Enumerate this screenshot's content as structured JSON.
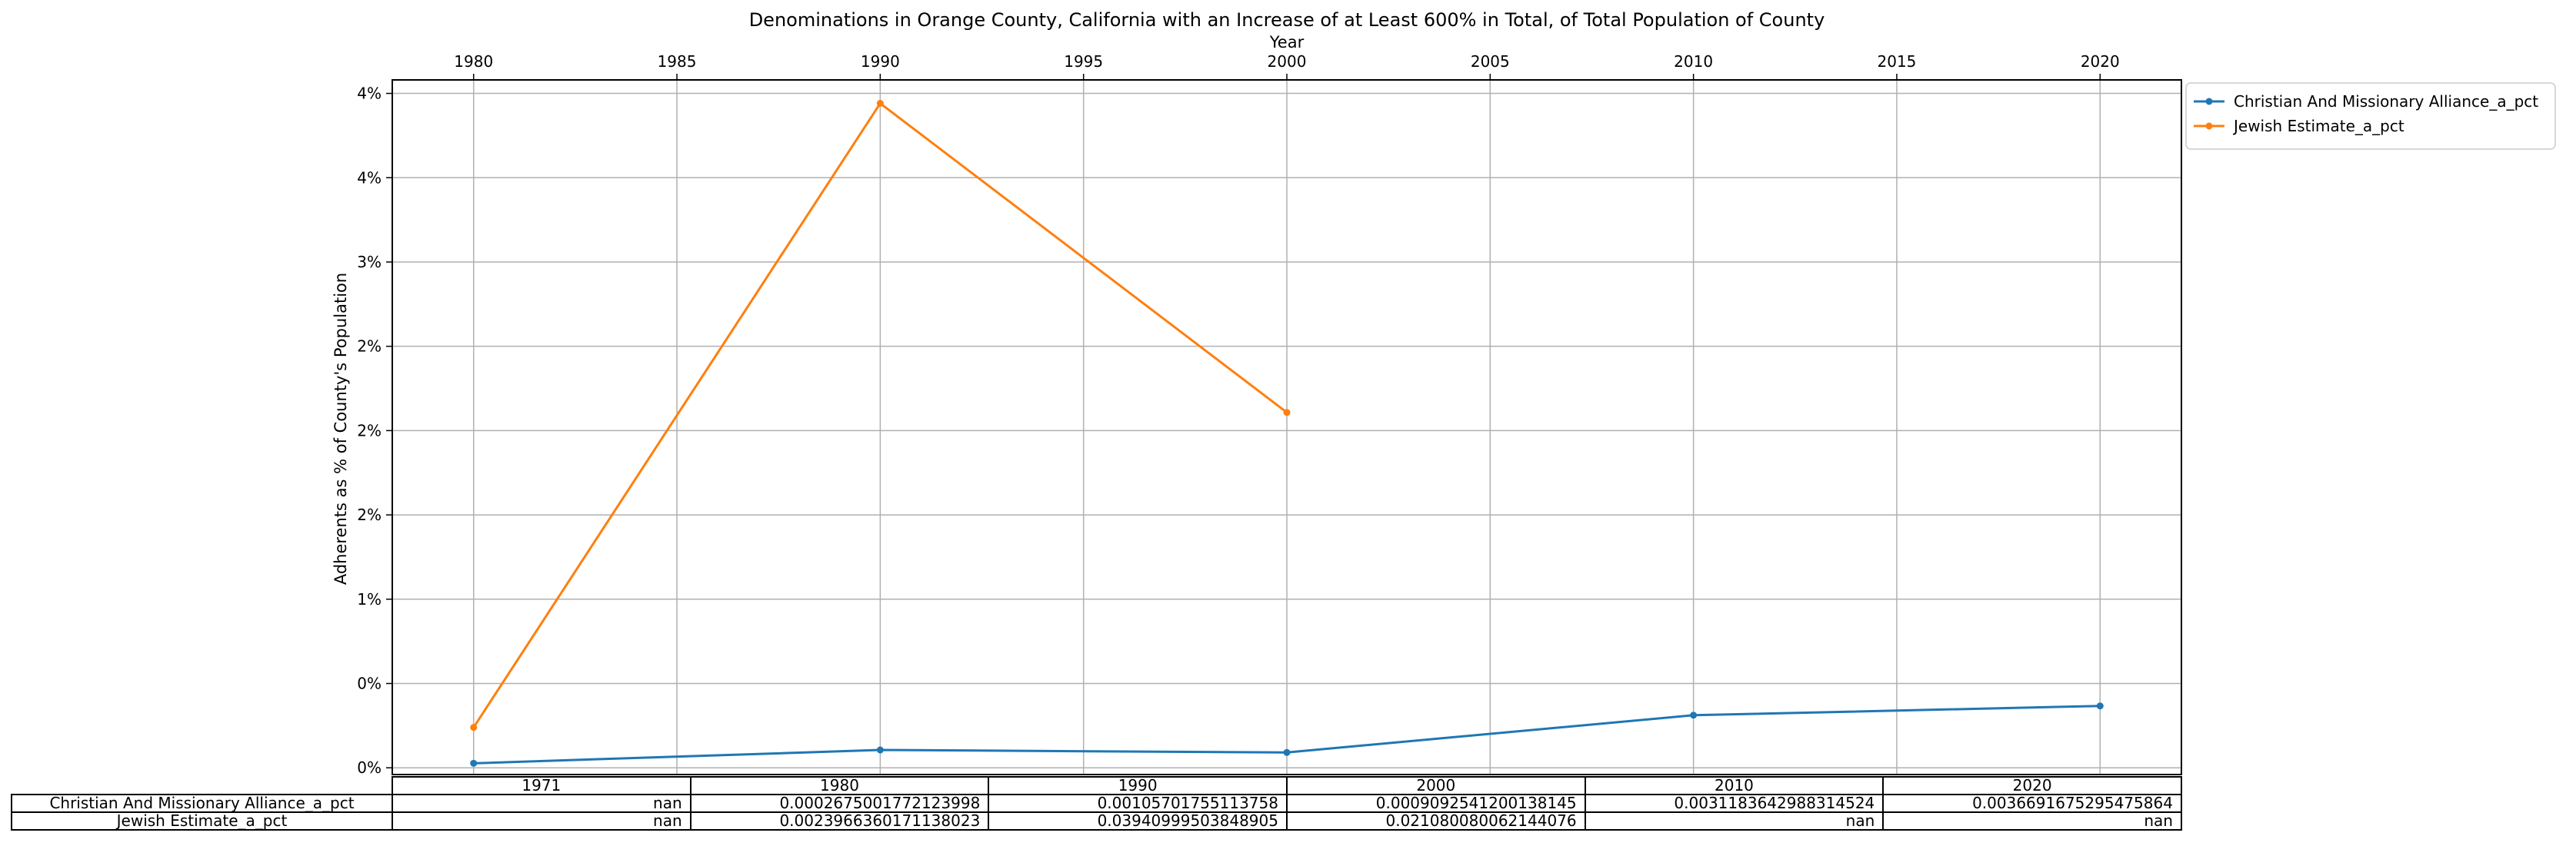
{
  "chart_data": {
    "type": "line",
    "title": "Denominations in Orange County, California with an Increase of at Least 600% in Total, of Total Population of County",
    "xlabel": "Year",
    "ylabel": "Adherents as % of County's Population",
    "x_ticks": [
      1980,
      1985,
      1990,
      1995,
      2000,
      2005,
      2010,
      2015,
      2020
    ],
    "xlim": [
      1978,
      2022
    ],
    "y_ticks": [
      {
        "value": 0.0,
        "label": "0%"
      },
      {
        "value": 0.005,
        "label": "0%"
      },
      {
        "value": 0.01,
        "label": "1%"
      },
      {
        "value": 0.015,
        "label": "2%"
      },
      {
        "value": 0.02,
        "label": "2%"
      },
      {
        "value": 0.025,
        "label": "2%"
      },
      {
        "value": 0.03,
        "label": "3%"
      },
      {
        "value": 0.035,
        "label": "4%"
      },
      {
        "value": 0.04,
        "label": "4%"
      }
    ],
    "ylim": [
      -0.0004,
      0.0408
    ],
    "grid": true,
    "legend_position": "outside-top-right",
    "series": [
      {
        "name": "Christian And Missionary Alliance_a_pct",
        "color": "#1f77b4",
        "x": [
          1980,
          1990,
          2000,
          2010,
          2020
        ],
        "values": [
          0.0002675001772123998,
          0.00105701755113758,
          0.0009092541200138145,
          0.0031183642988314524,
          0.0036691675295475864
        ]
      },
      {
        "name": "Jewish Estimate_a_pct",
        "color": "#ff7f0e",
        "x": [
          1980,
          1990,
          2000
        ],
        "values": [
          0.0023966360171138023,
          0.03940999503848905,
          0.021080080062144076
        ]
      }
    ],
    "table": {
      "columns": [
        "1971",
        "1980",
        "1990",
        "2000",
        "2010",
        "2020"
      ],
      "rows": [
        {
          "label": "Christian And Missionary Alliance_a_pct",
          "cells": [
            "nan",
            "0.0002675001772123998",
            "0.00105701755113758",
            "0.0009092541200138145",
            "0.0031183642988314524",
            "0.0036691675295475864"
          ]
        },
        {
          "label": "Jewish Estimate_a_pct",
          "cells": [
            "nan",
            "0.0023966360171138023",
            "0.03940999503848905",
            "0.021080080062144076",
            "nan",
            "nan"
          ]
        }
      ]
    }
  }
}
